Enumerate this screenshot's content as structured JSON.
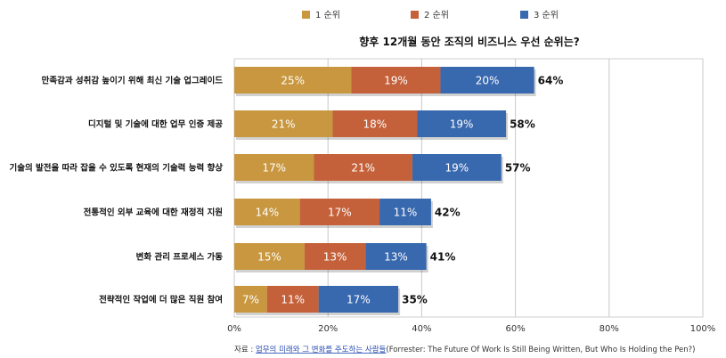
{
  "chart_data": {
    "type": "bar",
    "orientation": "horizontal",
    "stacked": true,
    "title": "향후 12개월 동안 조직의 비즈니스 우선 순위는?",
    "categories": [
      "만족감과 성취감 높이기 위해 최신 기술 업그레이드",
      "디지털 및 기술에 대한 업무 인증 제공",
      "기술의 발전을 따라 잡을 수 있도록 현재의 기술력 능력 향상",
      "전통적인 외부 교육에 대한 재정적 지원",
      "변화 관리 프로세스 가동",
      "전략적인 작업에 더 많은 직원 참여"
    ],
    "series": [
      {
        "name": "1 순위",
        "color": "#c8973f",
        "values": [
          25,
          21,
          17,
          14,
          15,
          7
        ]
      },
      {
        "name": "2 순위",
        "color": "#c4613a",
        "values": [
          19,
          18,
          21,
          17,
          13,
          11
        ]
      },
      {
        "name": "3 순위",
        "color": "#3868ae",
        "values": [
          20,
          19,
          19,
          11,
          13,
          17
        ]
      }
    ],
    "segment_labels": [
      [
        "25%",
        "19%",
        "20%"
      ],
      [
        "21%",
        "18%",
        "19%"
      ],
      [
        "17%",
        "21%",
        "19%"
      ],
      [
        "14%",
        "17%",
        "11%"
      ],
      [
        "15%",
        "13%",
        "13%"
      ],
      [
        "7%",
        "11%",
        "17%"
      ]
    ],
    "totals": [
      64,
      58,
      57,
      42,
      41,
      35
    ],
    "total_labels": [
      "64%",
      "58%",
      "57%",
      "42%",
      "41%",
      "35%"
    ],
    "xlim": [
      0,
      100
    ],
    "xticks": [
      0,
      20,
      40,
      60,
      80,
      100
    ],
    "xtick_labels": [
      "0%",
      "20%",
      "40%",
      "60%",
      "80%",
      "100%"
    ],
    "grid": true,
    "legend_position": "top"
  },
  "source": {
    "prefix": "자료 : ",
    "link_text": "업무의 미래와 그 변화를 주도하는 사람들",
    "suffix": "(Forrester: The Future Of Work Is Still Being Written, But Who Is Holding the Pen?)"
  }
}
